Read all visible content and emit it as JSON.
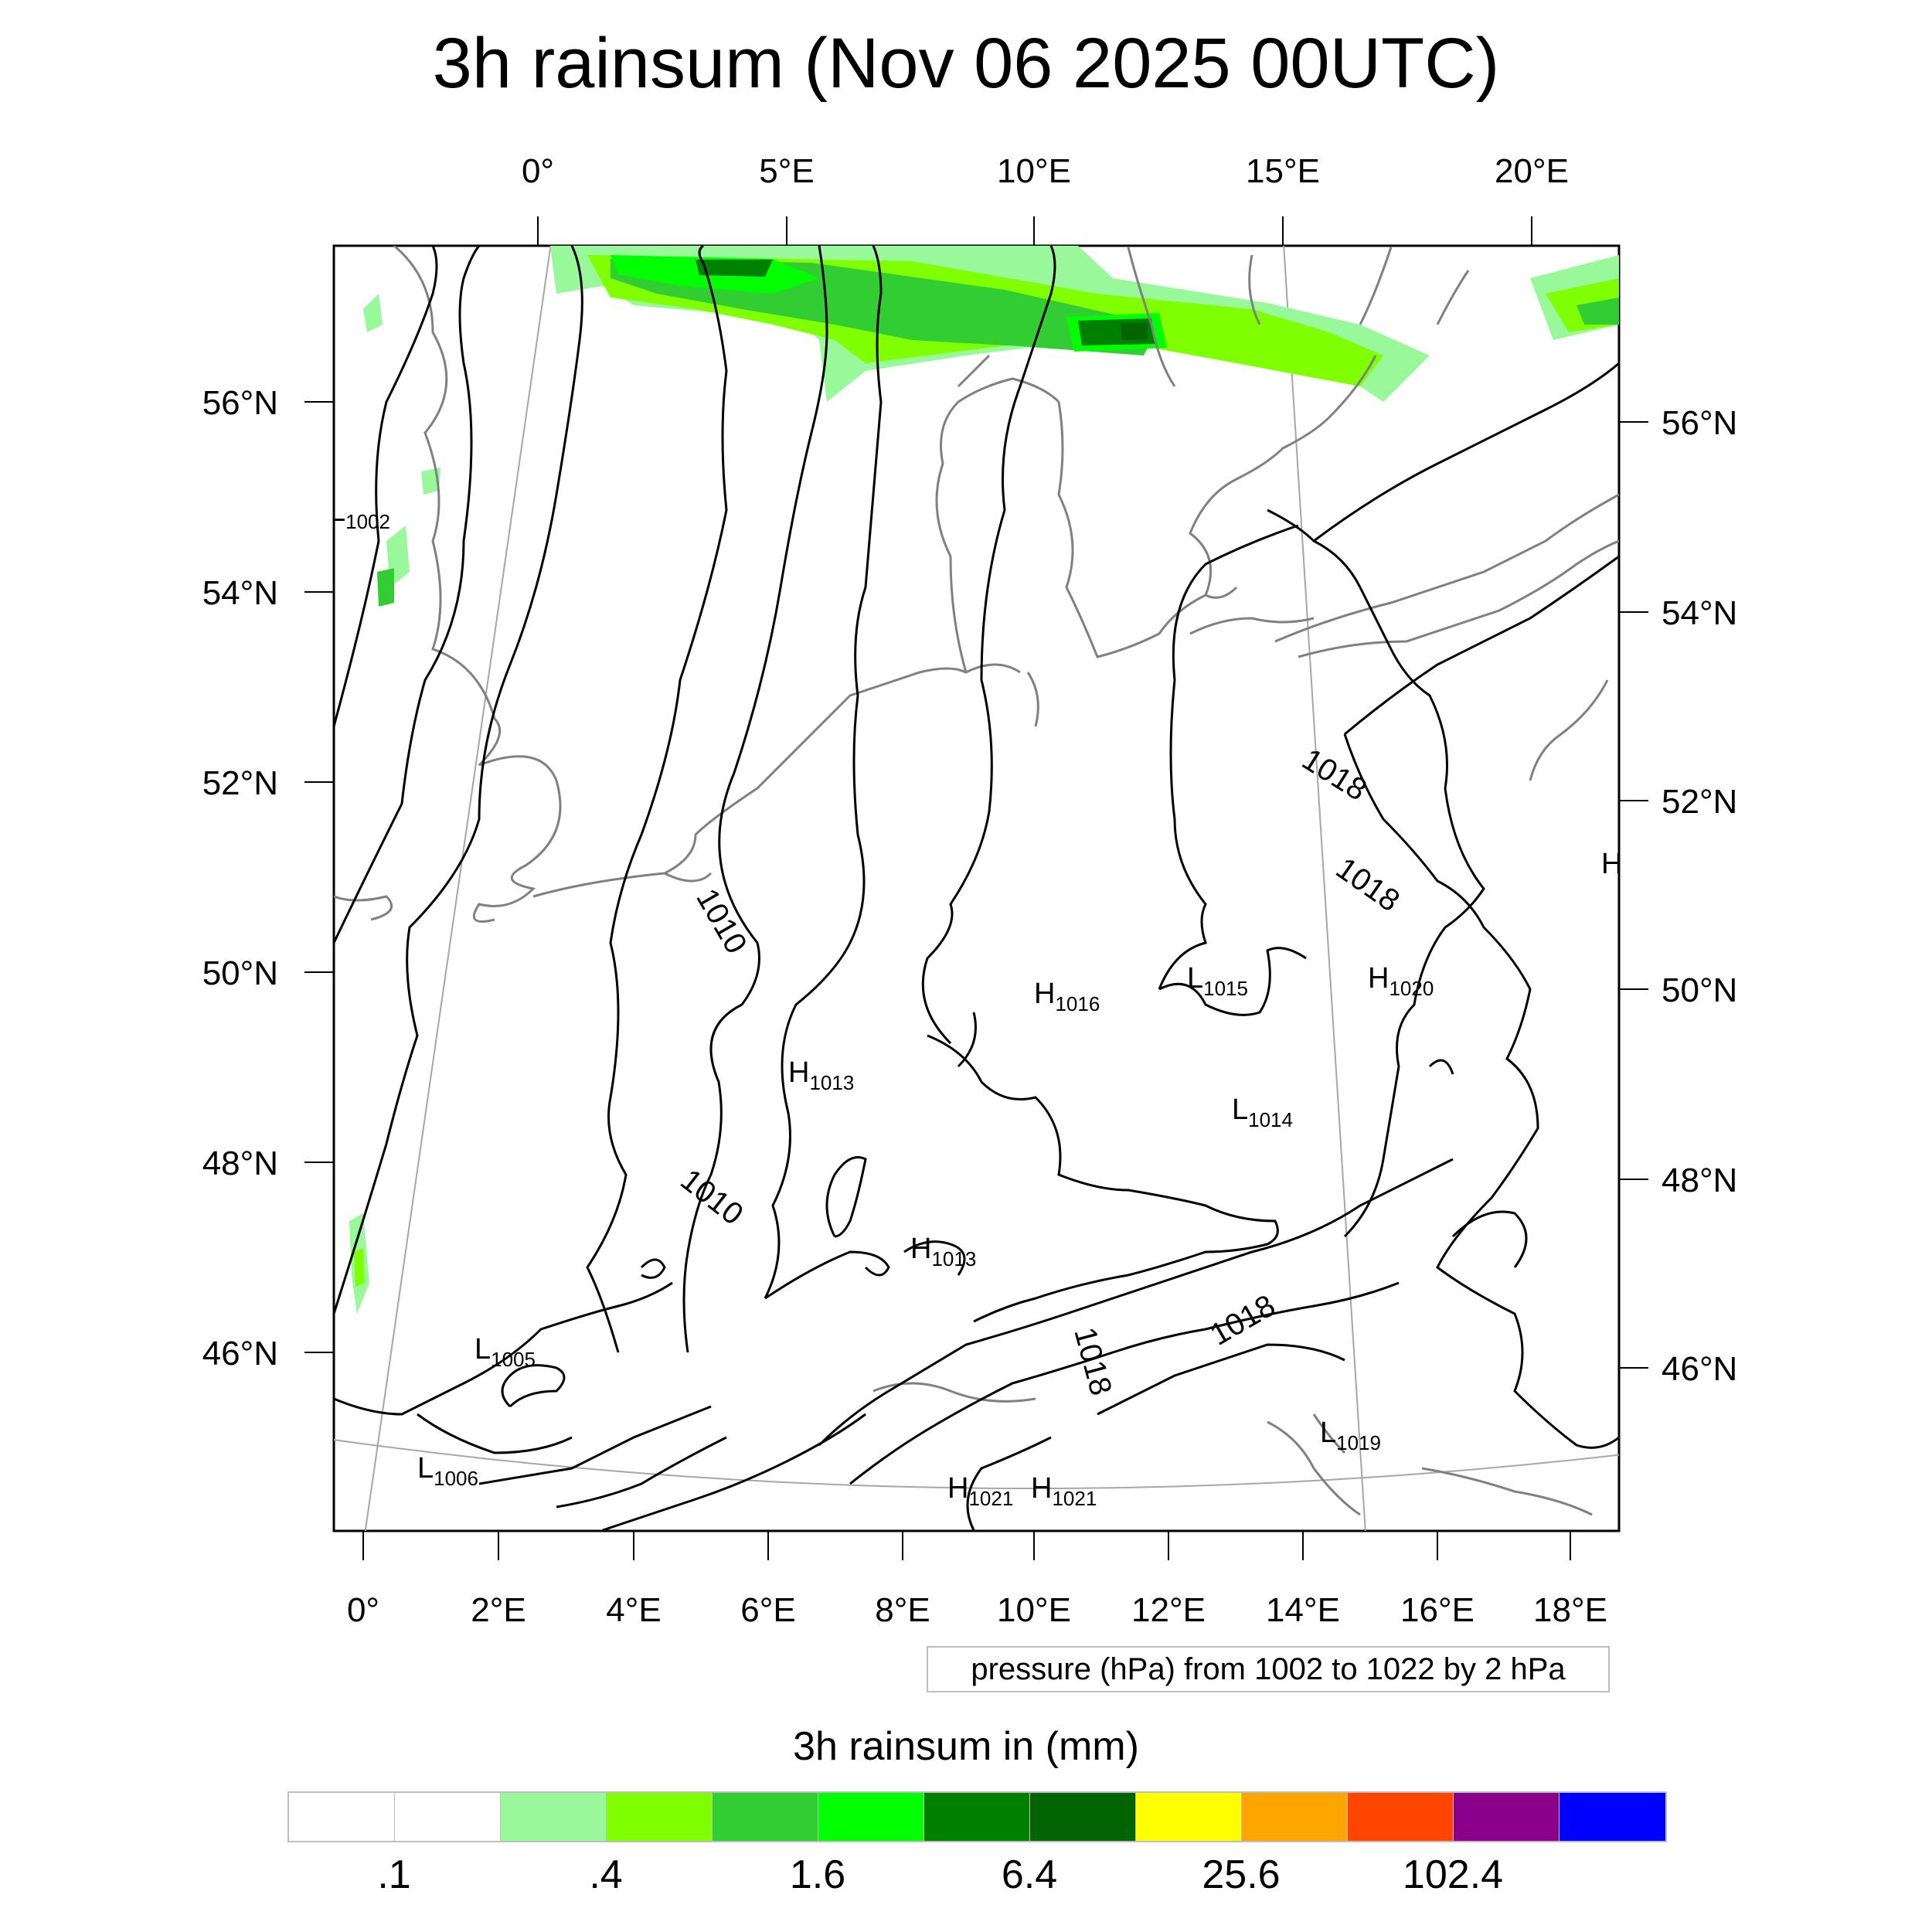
{
  "title": "3h rainsum (Nov 06 2025 00UTC)",
  "top_lon_labels": [
    "0°",
    "5°E",
    "10°E",
    "15°E",
    "20°E"
  ],
  "bottom_lon_labels": [
    "0°",
    "2°E",
    "4°E",
    "6°E",
    "8°E",
    "10°E",
    "12°E",
    "14°E",
    "16°E",
    "18°E"
  ],
  "left_lat_labels": [
    "56°N",
    "54°N",
    "52°N",
    "50°N",
    "48°N",
    "46°N"
  ],
  "right_lat_labels": [
    "56°N",
    "54°N",
    "52°N",
    "50°N",
    "48°N",
    "46°N"
  ],
  "contour_labels": [
    {
      "text": "1010"
    },
    {
      "text": "1010"
    },
    {
      "text": "1018"
    },
    {
      "text": "1018"
    },
    {
      "text": "1018"
    },
    {
      "text": "1018"
    }
  ],
  "pressure_centers": [
    {
      "type": "L",
      "value": "1002"
    },
    {
      "type": "H",
      "value": "1016"
    },
    {
      "type": "L",
      "value": "1015"
    },
    {
      "type": "H",
      "value": "1020"
    },
    {
      "type": "H",
      "value": "1013"
    },
    {
      "type": "L",
      "value": "1014"
    },
    {
      "type": "H",
      "value": "1013"
    },
    {
      "type": "L",
      "value": "1005"
    },
    {
      "type": "L",
      "value": "1006"
    },
    {
      "type": "H",
      "value": "1021"
    },
    {
      "type": "H",
      "value": "1021"
    },
    {
      "type": "L",
      "value": "1019"
    },
    {
      "type": "H",
      "value": ""
    }
  ],
  "info_box": "pressure (hPa) from 1002 to 1022 by 2 hPa",
  "colorbar": {
    "title": "3h rainsum in (mm)",
    "colors": [
      "#ffffff",
      "#ffffff",
      "#99f899",
      "#80ff00",
      "#32cd32",
      "#00ff00",
      "#008000",
      "#006400",
      "#ffff00",
      "#ffa500",
      "#ff4500",
      "#8b008b",
      "#0000ff"
    ],
    "tick_labels": [
      ".1",
      ".4",
      "1.6",
      "6.4",
      "25.6",
      "102.4"
    ]
  },
  "colors": {
    "coast": "#808080",
    "isobar": "#000000",
    "grid": "#a0a0a0"
  }
}
